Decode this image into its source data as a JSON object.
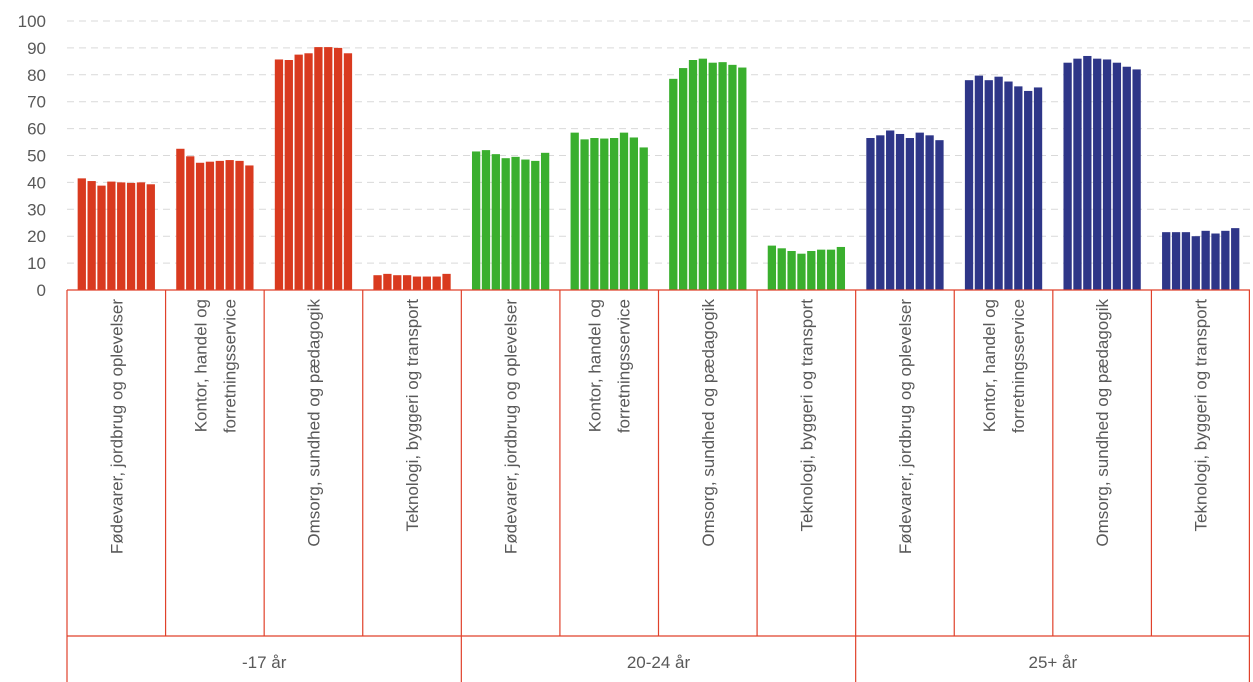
{
  "chart_data": {
    "type": "bar",
    "title": "",
    "xlabel": "",
    "ylabel": "",
    "ylim": [
      0,
      100
    ],
    "yticks": [
      0,
      10,
      20,
      30,
      40,
      50,
      60,
      70,
      80,
      90,
      100
    ],
    "grid": true,
    "legend": "none",
    "axis_color": "#e0412b",
    "groups": [
      {
        "label": "-17 år",
        "color": "#d93a1f",
        "categories": [
          {
            "label": [
              "Fødevarer, jordbrug og oplevelser"
            ],
            "values": [
              41.5,
              40.5,
              38.8,
              40.3,
              40.0,
              39.8,
              40.0,
              39.3
            ]
          },
          {
            "label": [
              "Kontor, handel og",
              "forretningsservice"
            ],
            "values": [
              52.5,
              49.7,
              47.3,
              47.7,
              48.0,
              48.3,
              48.0,
              46.3
            ]
          },
          {
            "label": [
              "Omsorg, sundhed og pædagogik"
            ],
            "values": [
              85.7,
              85.5,
              87.5,
              88.0,
              90.3,
              90.3,
              90.0,
              88.0
            ]
          },
          {
            "label": [
              "Teknologi, byggeri og transport"
            ],
            "values": [
              5.5,
              6.0,
              5.5,
              5.5,
              5.0,
              5.0,
              5.0,
              6.0
            ]
          }
        ]
      },
      {
        "label": "20-24 år",
        "color": "#3aaf2e",
        "categories": [
          {
            "label": [
              "Fødevarer, jordbrug og oplevelser"
            ],
            "values": [
              51.5,
              52.0,
              50.5,
              49.0,
              49.5,
              48.5,
              48.0,
              51.0
            ]
          },
          {
            "label": [
              "Kontor, handel og",
              "forretningsservice"
            ],
            "values": [
              58.5,
              56.0,
              56.5,
              56.3,
              56.5,
              58.5,
              56.7,
              53.0
            ]
          },
          {
            "label": [
              "Omsorg, sundhed og pædagogik"
            ],
            "values": [
              78.5,
              82.5,
              85.5,
              86.0,
              84.5,
              84.7,
              83.7,
              82.7
            ]
          },
          {
            "label": [
              "Teknologi, byggeri og transport"
            ],
            "values": [
              16.5,
              15.5,
              14.5,
              13.5,
              14.5,
              15.0,
              15.0,
              16.0
            ]
          }
        ]
      },
      {
        "label": "25+ år",
        "color": "#2e3688",
        "categories": [
          {
            "label": [
              "Fødevarer, jordbrug og oplevelser"
            ],
            "values": [
              56.5,
              57.5,
              59.3,
              58.0,
              56.5,
              58.5,
              57.5,
              55.7
            ]
          },
          {
            "label": [
              "Kontor, handel og",
              "forretningsservice"
            ],
            "values": [
              78.0,
              79.7,
              78.0,
              79.3,
              77.5,
              75.7,
              74.0,
              75.3
            ]
          },
          {
            "label": [
              "Omsorg, sundhed og pædagogik"
            ],
            "values": [
              84.5,
              86.0,
              87.0,
              86.0,
              85.7,
              84.5,
              83.0,
              82.0
            ]
          },
          {
            "label": [
              "Teknologi, byggeri og transport"
            ],
            "values": [
              21.5,
              21.5,
              21.5,
              20.0,
              22.0,
              21.0,
              22.0,
              23.0
            ]
          }
        ]
      }
    ]
  }
}
